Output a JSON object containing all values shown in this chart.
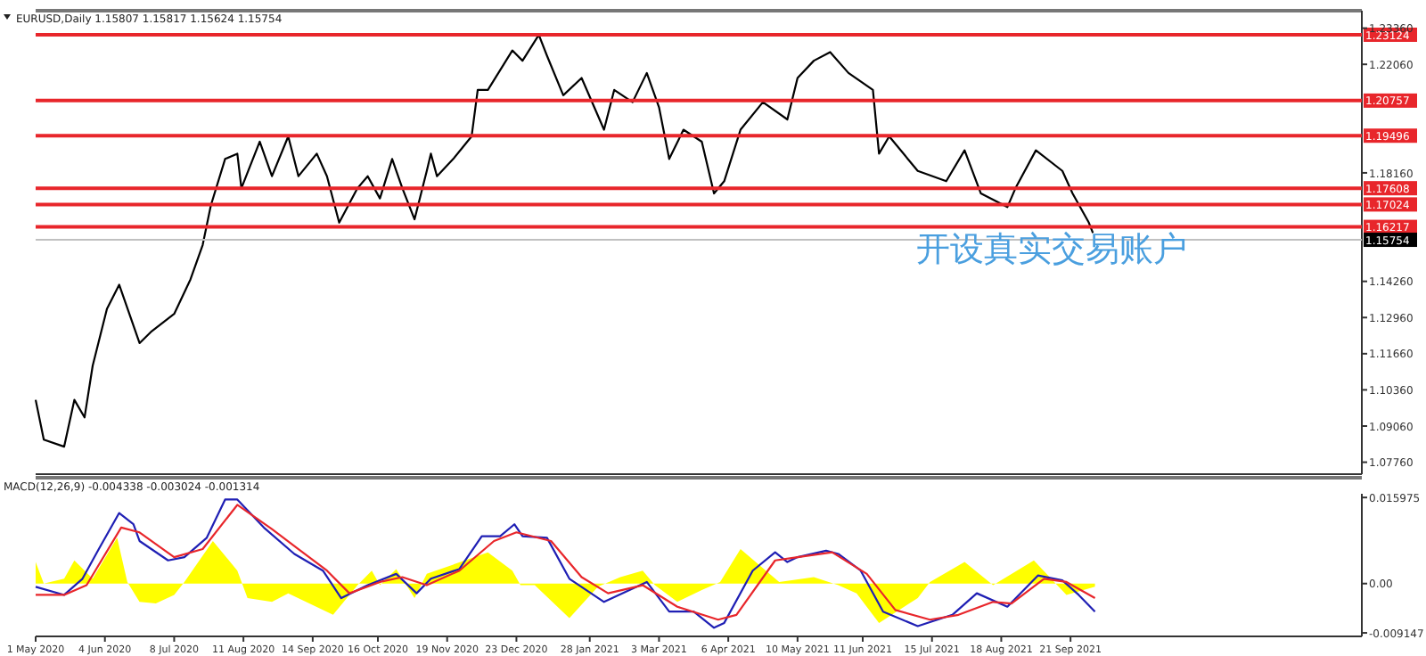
{
  "chart_data": [
    {
      "type": "line",
      "title": "EURUSD,Daily 1.15807 1.15817 1.15624 1.15754",
      "xlim": [
        "2020-05-01",
        "2022-02-11"
      ],
      "ylim": [
        1.0733,
        1.2386
      ],
      "tick_labels": "y",
      "yticks": [
        {
          "value": 1.2336,
          "label": "1.23360"
        },
        {
          "value": 1.2206,
          "label": "1.22060"
        },
        {
          "value": 1.1816,
          "label": "1.18160"
        },
        {
          "value": 1.1426,
          "label": "1.14260"
        },
        {
          "value": 1.1296,
          "label": "1.12960"
        },
        {
          "value": 1.1166,
          "label": "1.11660"
        },
        {
          "value": 1.1036,
          "label": "1.10360"
        },
        {
          "value": 1.0906,
          "label": "1.09060"
        },
        {
          "value": 1.0776,
          "label": "1.07760"
        }
      ],
      "series": [
        {
          "color": "#000000",
          "x": [
            "2020-05-01",
            "2020-05-05",
            "2020-05-15",
            "2020-05-20",
            "2020-05-25",
            "2020-05-29",
            "2020-06-05",
            "2020-06-11",
            "2020-06-21",
            "2020-06-27",
            "2020-07-08",
            "2020-07-16",
            "2020-07-22",
            "2020-07-26",
            "2020-08-02",
            "2020-08-08",
            "2020-08-10",
            "2020-08-19",
            "2020-08-25",
            "2020-09-02",
            "2020-09-07",
            "2020-09-16",
            "2020-09-21",
            "2020-09-27",
            "2020-10-06",
            "2020-10-11",
            "2020-10-17",
            "2020-10-23",
            "2020-10-28",
            "2020-11-03",
            "2020-11-09",
            "2020-11-11",
            "2020-11-14",
            "2020-11-22",
            "2020-12-01",
            "2020-12-04",
            "2020-12-09",
            "2020-12-21",
            "2020-12-26",
            "2021-01-03",
            "2021-01-07",
            "2021-01-15",
            "2021-01-24",
            "2021-02-04",
            "2021-02-09",
            "2021-02-18",
            "2021-02-25",
            "2021-03-03",
            "2021-03-08",
            "2021-03-15",
            "2021-03-24",
            "2021-03-30",
            "2021-04-04",
            "2021-04-12",
            "2021-04-23",
            "2021-05-05",
            "2021-05-10",
            "2021-05-18",
            "2021-05-26",
            "2021-06-04",
            "2021-06-16",
            "2021-06-19",
            "2021-06-24",
            "2021-07-08",
            "2021-07-22",
            "2021-07-31",
            "2021-08-08",
            "2021-08-21",
            "2021-08-25",
            "2021-09-04",
            "2021-09-17",
            "2021-09-22",
            "2021-09-30",
            "2021-10-02"
          ],
          "values": [
            1.1,
            1.0857,
            1.0832,
            1.1,
            1.0937,
            1.1123,
            1.1327,
            1.1414,
            1.1204,
            1.1247,
            1.1309,
            1.1433,
            1.1557,
            1.1699,
            1.1866,
            1.1885,
            1.1761,
            1.1928,
            1.1804,
            1.1947,
            1.1804,
            1.1885,
            1.1804,
            1.1637,
            1.1761,
            1.1804,
            1.1724,
            1.1866,
            1.1761,
            1.1649,
            1.1823,
            1.1885,
            1.1804,
            1.1866,
            1.1947,
            1.2114,
            1.2114,
            1.2256,
            1.2219,
            1.2312,
            1.2237,
            1.2095,
            1.2157,
            1.1971,
            1.2114,
            1.207,
            1.2175,
            1.2052,
            1.1866,
            1.1971,
            1.1928,
            1.1742,
            1.1786,
            1.1971,
            1.207,
            1.2008,
            1.2157,
            1.2219,
            1.225,
            1.2175,
            1.2114,
            1.1885,
            1.1947,
            1.1823,
            1.1786,
            1.1897,
            1.1742,
            1.1693,
            1.1761,
            1.1897,
            1.1823,
            1.1742,
            1.1637,
            1.16
          ]
        }
      ],
      "ref_lines": [
        {
          "axis": "y",
          "value": 1.23124,
          "label": "1.23124",
          "color": "#e8262b"
        },
        {
          "axis": "y",
          "value": 1.20757,
          "label": "1.20757",
          "color": "#e8262b"
        },
        {
          "axis": "y",
          "value": 1.19496,
          "label": "1.19496",
          "color": "#e8262b"
        },
        {
          "axis": "y",
          "value": 1.17608,
          "label": "1.17608",
          "color": "#e8262b"
        },
        {
          "axis": "y",
          "value": 1.17024,
          "label": "1.17024",
          "color": "#e8262b"
        },
        {
          "axis": "y",
          "value": 1.16217,
          "label": "1.16217",
          "color": "#e8262b"
        },
        {
          "axis": "y",
          "value": 1.15754,
          "label": "1.15754",
          "color": "#c0c0c0"
        }
      ],
      "annotations": [
        "开设真实交易账户"
      ]
    },
    {
      "type": "line",
      "title": "MACD(12,26,9) -0.004338 -0.003024 -0.001314",
      "xlim": [
        "2020-05-01",
        "2022-02-11"
      ],
      "ylim": [
        -0.0098,
        0.016
      ],
      "yticks": [
        0.015975,
        {
          "value": 0,
          "label": "0.00"
        },
        -0.009147
      ],
      "xticks": [
        {
          "value": "2020-05-01",
          "label": "1 May 2020"
        },
        {
          "value": "2020-06-04",
          "label": "4 Jun 2020"
        },
        {
          "value": "2020-07-08",
          "label": "8 Jul 2020"
        },
        {
          "value": "2020-08-11",
          "label": "11 Aug 2020"
        },
        {
          "value": "2020-09-14",
          "label": "14 Sep 2020"
        },
        {
          "value": "2020-10-16",
          "label": "16 Oct 2020"
        },
        {
          "value": "2020-11-19",
          "label": "19 Nov 2020"
        },
        {
          "value": "2020-12-23",
          "label": "23 Dec 2020"
        },
        {
          "value": "2021-01-28",
          "label": "28 Jan 2021"
        },
        {
          "value": "2021-03-03",
          "label": "3 Mar 2021"
        },
        {
          "value": "2021-04-06",
          "label": "6 Apr 2021"
        },
        {
          "value": "2021-05-10",
          "label": "10 May 2021"
        },
        {
          "value": "2021-06-11",
          "label": "11 Jun 2021"
        },
        {
          "value": "2021-07-15",
          "label": "15 Jul 2021"
        },
        {
          "value": "2021-08-18",
          "label": "18 Aug 2021"
        },
        {
          "value": "2021-09-21",
          "label": "21 Sep 2021"
        }
      ],
      "series": [
        {
          "type": "area",
          "color": "#ffff00",
          "x": [
            "2020-05-01",
            "2020-05-05",
            "2020-05-15",
            "2020-05-20",
            "2020-05-29",
            "2020-06-10",
            "2020-06-15",
            "2020-06-21",
            "2020-06-29",
            "2020-07-08",
            "2020-07-13",
            "2020-07-27",
            "2020-08-08",
            "2020-08-13",
            "2020-08-25",
            "2020-09-02",
            "2020-09-24",
            "2020-10-06",
            "2020-10-13",
            "2020-10-17",
            "2020-10-25",
            "2020-11-03",
            "2020-11-09",
            "2020-12-09",
            "2020-12-21",
            "2020-12-25",
            "2021-01-01",
            "2021-01-18",
            "2021-02-01",
            "2021-02-12",
            "2021-02-23",
            "2021-03-01",
            "2021-03-12",
            "2021-03-24",
            "2021-04-02",
            "2021-04-12",
            "2021-05-01",
            "2021-05-18",
            "2021-05-30",
            "2021-06-08",
            "2021-06-19",
            "2021-07-08",
            "2021-07-14",
            "2021-07-31",
            "2021-08-14",
            "2021-09-03",
            "2021-09-19",
            "2021-10-03"
          ],
          "values": [
            0.004,
            0,
            0.0009,
            0.0043,
            0.0009,
            0.0085,
            0.0003,
            -0.0034,
            -0.0037,
            -0.0021,
            0.0003,
            0.0079,
            0.0024,
            -0.0027,
            -0.0034,
            -0.0018,
            -0.0058,
            -0.0003,
            0.0024,
            -0.0003,
            0.0027,
            -0.0027,
            0.0018,
            0.0058,
            0.0024,
            -0.0003,
            -0.0003,
            -0.0064,
            -0.0006,
            0.0012,
            0.0024,
            -0.0003,
            -0.0034,
            -0.0012,
            0.0003,
            0.0064,
            0.0003,
            0.0012,
            -0.0003,
            -0.0018,
            -0.0073,
            -0.0027,
            0.0003,
            0.004,
            -0.0003,
            0.0043,
            -0.0021,
            -0.0006
          ]
        },
        {
          "color": "#1f1fb4",
          "x": [
            "2020-05-01",
            "2020-05-15",
            "2020-05-24",
            "2020-06-01",
            "2020-06-11",
            "2020-06-18",
            "2020-06-21",
            "2020-07-05",
            "2020-07-13",
            "2020-07-24",
            "2020-08-02",
            "2020-08-08",
            "2020-08-21",
            "2020-09-05",
            "2020-09-19",
            "2020-09-28",
            "2020-10-11",
            "2020-10-25",
            "2020-11-04",
            "2020-11-11",
            "2020-11-25",
            "2020-12-06",
            "2020-12-15",
            "2020-12-22",
            "2020-12-26",
            "2021-01-07",
            "2021-01-18",
            "2021-02-04",
            "2021-02-25",
            "2021-03-08",
            "2021-03-20",
            "2021-03-30",
            "2021-04-04",
            "2021-04-18",
            "2021-04-29",
            "2021-05-05",
            "2021-05-10",
            "2021-05-24",
            "2021-05-30",
            "2021-06-10",
            "2021-06-21",
            "2021-07-08",
            "2021-07-25",
            "2021-08-06",
            "2021-08-21",
            "2021-09-05",
            "2021-09-17",
            "2021-09-25",
            "2021-10-03"
          ],
          "values": [
            -0.0006,
            -0.0021,
            0.0009,
            0.0064,
            0.0131,
            0.011,
            0.0079,
            0.0043,
            0.0049,
            0.0085,
            0.0156,
            0.0156,
            0.0104,
            0.0055,
            0.0024,
            -0.0027,
            -0.0003,
            0.0018,
            -0.0018,
            0.0009,
            0.0027,
            0.0088,
            0.0088,
            0.011,
            0.0088,
            0.0085,
            0.0009,
            -0.0034,
            0.0003,
            -0.0052,
            -0.0052,
            -0.0082,
            -0.0073,
            0.0024,
            0.0058,
            0.004,
            0.0049,
            0.0061,
            0.0055,
            0.0024,
            -0.0052,
            -0.0079,
            -0.0058,
            -0.0018,
            -0.0043,
            0.0015,
            0.0006,
            -0.0021,
            -0.0052
          ]
        },
        {
          "color": "#e8262b",
          "x": [
            "2020-05-01",
            "2020-05-15",
            "2020-05-26",
            "2020-06-12",
            "2020-06-21",
            "2020-07-08",
            "2020-07-22",
            "2020-08-08",
            "2020-08-25",
            "2020-09-07",
            "2020-09-21",
            "2020-10-02",
            "2020-10-17",
            "2020-10-28",
            "2020-11-09",
            "2020-11-25",
            "2020-12-12",
            "2020-12-23",
            "2021-01-09",
            "2021-01-24",
            "2021-02-06",
            "2021-02-23",
            "2021-03-12",
            "2021-04-01",
            "2021-04-10",
            "2021-04-29",
            "2021-05-10",
            "2021-05-27",
            "2021-06-13",
            "2021-06-27",
            "2021-07-14",
            "2021-07-28",
            "2021-08-14",
            "2021-08-23",
            "2021-09-08",
            "2021-09-19",
            "2021-10-03"
          ],
          "values": [
            -0.0021,
            -0.0021,
            -0.0003,
            0.0104,
            0.0095,
            0.0049,
            0.0064,
            0.0146,
            0.0101,
            0.0064,
            0.0024,
            -0.0018,
            0.0003,
            0.0012,
            -0.0003,
            0.0024,
            0.0079,
            0.0095,
            0.0079,
            0.0012,
            -0.0018,
            -0.0003,
            -0.0043,
            -0.0067,
            -0.0058,
            0.0043,
            0.0049,
            0.0058,
            0.0018,
            -0.0049,
            -0.0067,
            -0.0058,
            -0.0034,
            -0.0037,
            0.0009,
            0.0003,
            -0.0027
          ]
        }
      ]
    }
  ]
}
